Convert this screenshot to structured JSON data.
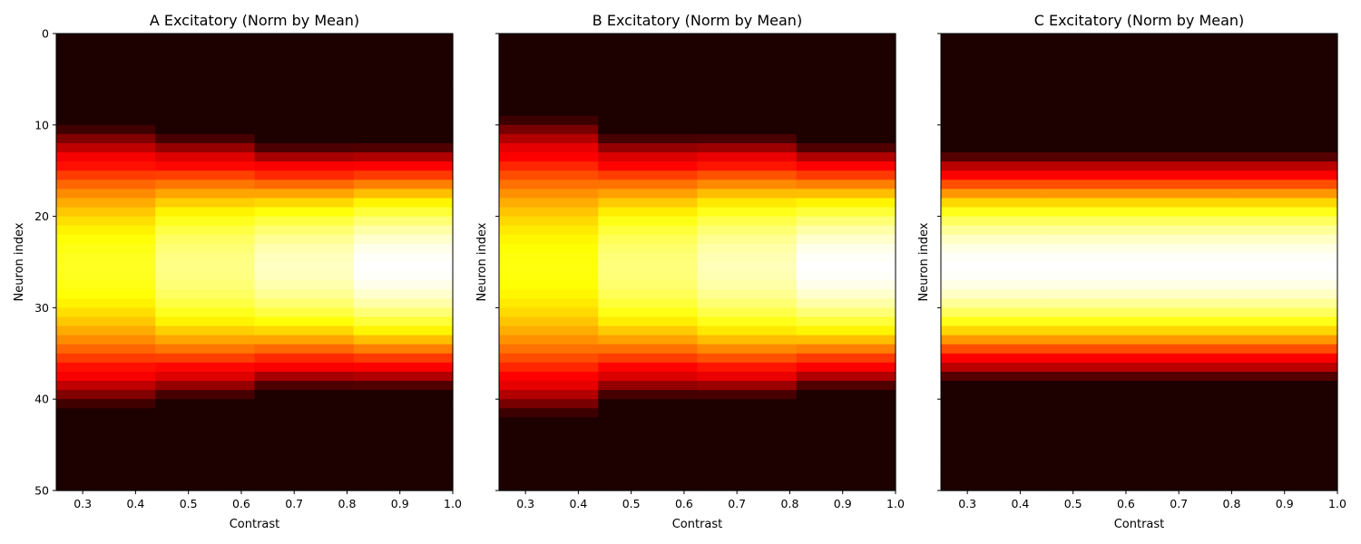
{
  "chart_data": [
    {
      "type": "heatmap",
      "title": "A Excitatory (Norm by Mean)",
      "xlabel": "Contrast",
      "ylabel": "Neuron index",
      "colormap": "hot",
      "xlim": [
        0.25,
        1.0
      ],
      "ylim": [
        50,
        0
      ],
      "y_inverted": true,
      "x_edges": [
        0.25,
        0.4375,
        0.625,
        0.8125,
        1.0
      ],
      "x_ticks": [
        0.3,
        0.4,
        0.5,
        0.6,
        0.7,
        0.8,
        0.9,
        1.0
      ],
      "y_ticks": [
        0,
        10,
        20,
        30,
        40,
        50
      ],
      "show_y_tick_labels": true,
      "columns": [
        {
          "contrast_range": [
            0.25,
            0.4375
          ],
          "center": 25.5,
          "half_width": 15.5,
          "peak": 0.78
        },
        {
          "contrast_range": [
            0.4375,
            0.625
          ],
          "center": 25.5,
          "half_width": 14.5,
          "peak": 0.88
        },
        {
          "contrast_range": [
            0.625,
            0.8125
          ],
          "center": 25.5,
          "half_width": 13.5,
          "peak": 0.94
        },
        {
          "contrast_range": [
            0.8125,
            1.0
          ],
          "center": 25.5,
          "half_width": 13.5,
          "peak": 1.0
        }
      ]
    },
    {
      "type": "heatmap",
      "title": "B Excitatory (Norm by Mean)",
      "xlabel": "Contrast",
      "ylabel": "Neuron index",
      "colormap": "hot",
      "xlim": [
        0.25,
        1.0
      ],
      "ylim": [
        50,
        0
      ],
      "y_inverted": true,
      "x_edges": [
        0.25,
        0.4375,
        0.625,
        0.8125,
        1.0
      ],
      "x_ticks": [
        0.3,
        0.4,
        0.5,
        0.6,
        0.7,
        0.8,
        0.9,
        1.0
      ],
      "y_ticks": [
        0,
        10,
        20,
        30,
        40,
        50
      ],
      "show_y_tick_labels": false,
      "columns": [
        {
          "contrast_range": [
            0.25,
            0.4375
          ],
          "center": 25.5,
          "half_width": 16.5,
          "peak": 0.76
        },
        {
          "contrast_range": [
            0.4375,
            0.625
          ],
          "center": 25.5,
          "half_width": 14.5,
          "peak": 0.87
        },
        {
          "contrast_range": [
            0.625,
            0.8125
          ],
          "center": 25.5,
          "half_width": 14.5,
          "peak": 0.93
        },
        {
          "contrast_range": [
            0.8125,
            1.0
          ],
          "center": 25.5,
          "half_width": 13.5,
          "peak": 1.0
        }
      ]
    },
    {
      "type": "heatmap",
      "title": "C Excitatory (Norm by Mean)",
      "xlabel": "Contrast",
      "ylabel": "Neuron index",
      "colormap": "hot",
      "xlim": [
        0.25,
        1.0
      ],
      "ylim": [
        50,
        0
      ],
      "y_inverted": true,
      "x_edges": [
        0.25,
        0.4375,
        0.625,
        0.8125,
        1.0
      ],
      "x_ticks": [
        0.3,
        0.4,
        0.5,
        0.6,
        0.7,
        0.8,
        0.9,
        1.0
      ],
      "y_ticks": [
        0,
        10,
        20,
        30,
        40,
        50
      ],
      "show_y_tick_labels": false,
      "columns": [
        {
          "contrast_range": [
            0.25,
            0.4375
          ],
          "center": 25.5,
          "half_width": 12.5,
          "peak": 1.0
        },
        {
          "contrast_range": [
            0.4375,
            0.625
          ],
          "center": 25.5,
          "half_width": 12.5,
          "peak": 1.0
        },
        {
          "contrast_range": [
            0.625,
            0.8125
          ],
          "center": 25.5,
          "half_width": 12.5,
          "peak": 1.0
        },
        {
          "contrast_range": [
            0.8125,
            1.0
          ],
          "center": 25.5,
          "half_width": 12.5,
          "peak": 1.0
        }
      ]
    }
  ]
}
